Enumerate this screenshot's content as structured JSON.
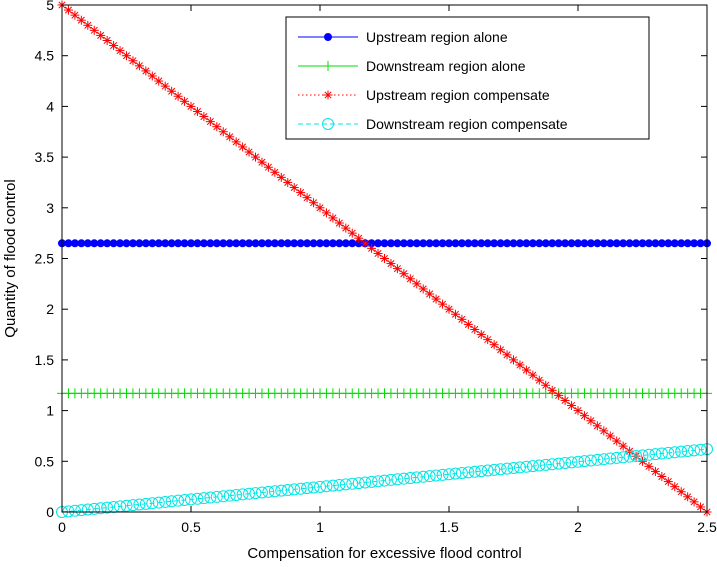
{
  "chart_data": {
    "type": "line",
    "xlabel": "Compensation for excessive flood control",
    "ylabel": "Quantity of flood control",
    "xlim": [
      0,
      2.5
    ],
    "ylim": [
      0,
      5
    ],
    "xticks": [
      0,
      0.5,
      1,
      1.5,
      2,
      2.5
    ],
    "yticks": [
      0,
      0.5,
      1,
      1.5,
      2,
      2.5,
      3,
      3.5,
      4,
      4.5,
      5
    ],
    "grid": false,
    "legend_position": "top-right",
    "x_step": 0.025,
    "series": [
      {
        "name": "Upstream region alone",
        "color": "#0000ff",
        "marker": "dot",
        "line": "solid",
        "formula": "constant",
        "y_start": 2.65,
        "y_end": 2.65
      },
      {
        "name": "Downstream region alone",
        "color": "#00dd00",
        "marker": "plus",
        "line": "solid",
        "formula": "constant",
        "y_start": 1.17,
        "y_end": 1.17
      },
      {
        "name": "Upstream region compensate",
        "color": "#ff0000",
        "marker": "star",
        "line": "dotted",
        "formula": "linear",
        "y_start": 5.0,
        "y_end": 0.0
      },
      {
        "name": "Downstream region compensate",
        "color": "#00e5e5",
        "marker": "circle",
        "line": "dashed",
        "formula": "linear",
        "y_start": 0.0,
        "y_end": 0.62
      }
    ]
  }
}
